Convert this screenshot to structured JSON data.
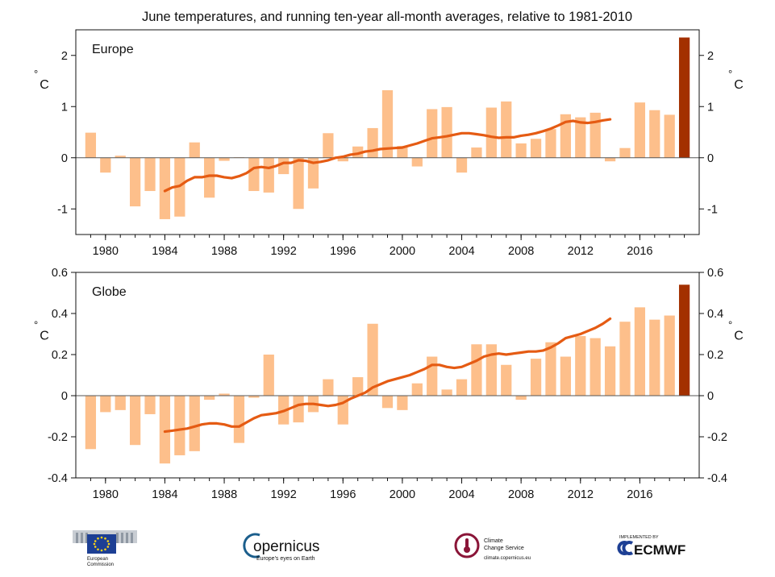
{
  "title": "June temperatures, and running ten-year all-month averages, relative to 1981-2010",
  "colors": {
    "bar": "#fdbf8b",
    "highlight_bar": "#a33000",
    "running_line": "#e55b13",
    "axis": "#111111"
  },
  "chart_data": [
    {
      "type": "bar",
      "panel_label": "Europe",
      "unit_label": "°C",
      "years": [
        1979,
        1980,
        1981,
        1982,
        1983,
        1984,
        1985,
        1986,
        1987,
        1988,
        1989,
        1990,
        1991,
        1992,
        1993,
        1994,
        1995,
        1996,
        1997,
        1998,
        1999,
        2000,
        2001,
        2002,
        2003,
        2004,
        2005,
        2006,
        2007,
        2008,
        2009,
        2010,
        2011,
        2012,
        2013,
        2014,
        2015,
        2016,
        2017,
        2018,
        2019
      ],
      "values": [
        0.49,
        -0.29,
        0.04,
        -0.95,
        -0.65,
        -1.2,
        -1.15,
        0.3,
        -0.78,
        -0.06,
        0.01,
        -0.65,
        -0.68,
        -0.32,
        -1.0,
        -0.6,
        0.48,
        -0.07,
        0.22,
        0.58,
        1.32,
        0.23,
        -0.17,
        0.95,
        0.99,
        -0.29,
        0.2,
        0.98,
        1.1,
        0.28,
        0.37,
        0.56,
        0.85,
        0.79,
        0.88,
        -0.07,
        0.19,
        1.08,
        0.93,
        0.84,
        2.35
      ],
      "highlight_year": 2019,
      "running_mean": {
        "x": [
          1984.0,
          1984.5,
          1985.0,
          1985.5,
          1986.0,
          1986.5,
          1987.0,
          1987.5,
          1988.0,
          1988.5,
          1989.0,
          1989.5,
          1990.0,
          1990.5,
          1991.0,
          1991.5,
          1992.0,
          1992.5,
          1993.0,
          1993.5,
          1994.0,
          1994.5,
          1995.0,
          1995.5,
          1996.0,
          1996.5,
          1997.0,
          1997.5,
          1998.0,
          1998.5,
          1999.0,
          1999.5,
          2000.0,
          2000.5,
          2001.0,
          2001.5,
          2002.0,
          2002.5,
          2003.0,
          2003.5,
          2004.0,
          2004.5,
          2005.0,
          2005.5,
          2006.0,
          2006.5,
          2007.0,
          2007.5,
          2008.0,
          2008.5,
          2009.0,
          2009.5,
          2010.0,
          2010.5,
          2011.0,
          2011.5,
          2012.0,
          2012.5,
          2013.0,
          2013.5,
          2014.0
        ],
        "y": [
          -0.65,
          -0.58,
          -0.55,
          -0.45,
          -0.38,
          -0.38,
          -0.35,
          -0.35,
          -0.38,
          -0.4,
          -0.36,
          -0.3,
          -0.2,
          -0.18,
          -0.2,
          -0.16,
          -0.1,
          -0.1,
          -0.05,
          -0.06,
          -0.1,
          -0.08,
          -0.05,
          0.0,
          0.02,
          0.06,
          0.08,
          0.12,
          0.14,
          0.17,
          0.18,
          0.19,
          0.2,
          0.24,
          0.28,
          0.33,
          0.38,
          0.4,
          0.42,
          0.45,
          0.48,
          0.48,
          0.46,
          0.44,
          0.41,
          0.39,
          0.4,
          0.4,
          0.43,
          0.45,
          0.48,
          0.52,
          0.57,
          0.63,
          0.7,
          0.72,
          0.69,
          0.68,
          0.7,
          0.73,
          0.75
        ]
      },
      "ylim": [
        -1.5,
        2.5
      ],
      "yticks": [
        -1,
        0,
        1,
        2
      ],
      "ytick_labels": [
        "-1",
        "0",
        "1",
        "2"
      ],
      "xlim": [
        1978,
        2020
      ],
      "xticks": [
        1980,
        1984,
        1988,
        1992,
        1996,
        2000,
        2004,
        2008,
        2012,
        2016
      ],
      "xtick_labels": [
        "1980",
        "1984",
        "1988",
        "1992",
        "1996",
        "2000",
        "2004",
        "2008",
        "2012",
        "2016"
      ],
      "grid": false
    },
    {
      "type": "bar",
      "panel_label": "Globe",
      "unit_label": "°C",
      "years": [
        1979,
        1980,
        1981,
        1982,
        1983,
        1984,
        1985,
        1986,
        1987,
        1988,
        1989,
        1990,
        1991,
        1992,
        1993,
        1994,
        1995,
        1996,
        1997,
        1998,
        1999,
        2000,
        2001,
        2002,
        2003,
        2004,
        2005,
        2006,
        2007,
        2008,
        2009,
        2010,
        2011,
        2012,
        2013,
        2014,
        2015,
        2016,
        2017,
        2018,
        2019
      ],
      "values": [
        -0.26,
        -0.08,
        -0.07,
        -0.24,
        -0.09,
        -0.33,
        -0.29,
        -0.27,
        -0.02,
        0.01,
        -0.23,
        -0.01,
        0.2,
        -0.14,
        -0.13,
        -0.08,
        0.08,
        -0.14,
        0.09,
        0.35,
        -0.06,
        -0.07,
        0.06,
        0.19,
        0.03,
        0.08,
        0.25,
        0.25,
        0.15,
        -0.02,
        0.18,
        0.26,
        0.19,
        0.29,
        0.28,
        0.24,
        0.36,
        0.43,
        0.37,
        0.39,
        0.54
      ],
      "highlight_year": 2019,
      "running_mean": {
        "x": [
          1984.0,
          1984.5,
          1985.0,
          1985.5,
          1986.0,
          1986.5,
          1987.0,
          1987.5,
          1988.0,
          1988.5,
          1989.0,
          1989.5,
          1990.0,
          1990.5,
          1991.0,
          1991.5,
          1992.0,
          1992.5,
          1993.0,
          1993.5,
          1994.0,
          1994.5,
          1995.0,
          1995.5,
          1996.0,
          1996.5,
          1997.0,
          1997.5,
          1998.0,
          1998.5,
          1999.0,
          1999.5,
          2000.0,
          2000.5,
          2001.0,
          2001.5,
          2002.0,
          2002.5,
          2003.0,
          2003.5,
          2004.0,
          2004.5,
          2005.0,
          2005.5,
          2006.0,
          2006.5,
          2007.0,
          2007.5,
          2008.0,
          2008.5,
          2009.0,
          2009.5,
          2010.0,
          2010.5,
          2011.0,
          2011.5,
          2012.0,
          2012.5,
          2013.0,
          2013.5,
          2014.0
        ],
        "y": [
          -0.175,
          -0.17,
          -0.165,
          -0.16,
          -0.15,
          -0.14,
          -0.135,
          -0.135,
          -0.14,
          -0.15,
          -0.15,
          -0.13,
          -0.11,
          -0.095,
          -0.09,
          -0.085,
          -0.075,
          -0.06,
          -0.045,
          -0.04,
          -0.04,
          -0.045,
          -0.05,
          -0.045,
          -0.035,
          -0.015,
          0.0,
          0.015,
          0.04,
          0.055,
          0.07,
          0.08,
          0.09,
          0.1,
          0.115,
          0.13,
          0.15,
          0.15,
          0.14,
          0.135,
          0.14,
          0.155,
          0.17,
          0.19,
          0.2,
          0.205,
          0.2,
          0.205,
          0.21,
          0.215,
          0.215,
          0.22,
          0.235,
          0.255,
          0.28,
          0.29,
          0.3,
          0.315,
          0.33,
          0.35,
          0.375
        ]
      },
      "ylim": [
        -0.4,
        0.6
      ],
      "yticks": [
        -0.4,
        -0.2,
        0,
        0.2,
        0.4,
        0.6
      ],
      "ytick_labels": [
        "-0.4",
        "-0.2",
        "0",
        "0.2",
        "0.4",
        "0.6"
      ],
      "xlim": [
        1978,
        2020
      ],
      "xticks": [
        1980,
        1984,
        1988,
        1992,
        1996,
        2000,
        2004,
        2008,
        2012,
        2016
      ],
      "xtick_labels": [
        "1980",
        "1984",
        "1988",
        "1992",
        "1996",
        "2000",
        "2004",
        "2008",
        "2012",
        "2016"
      ],
      "grid": false
    }
  ],
  "logos": {
    "european_commission": {
      "line1": "European",
      "line2": "Commission"
    },
    "copernicus": {
      "name": "opernicus",
      "tagline": "Europe's eyes on Earth"
    },
    "c3s": {
      "line1": "Climate",
      "line2": "Change Service",
      "url": "climate.copernicus.eu"
    },
    "ecmwf": {
      "implemented_by": "IMPLEMENTED BY",
      "name": "ECMWF"
    }
  }
}
